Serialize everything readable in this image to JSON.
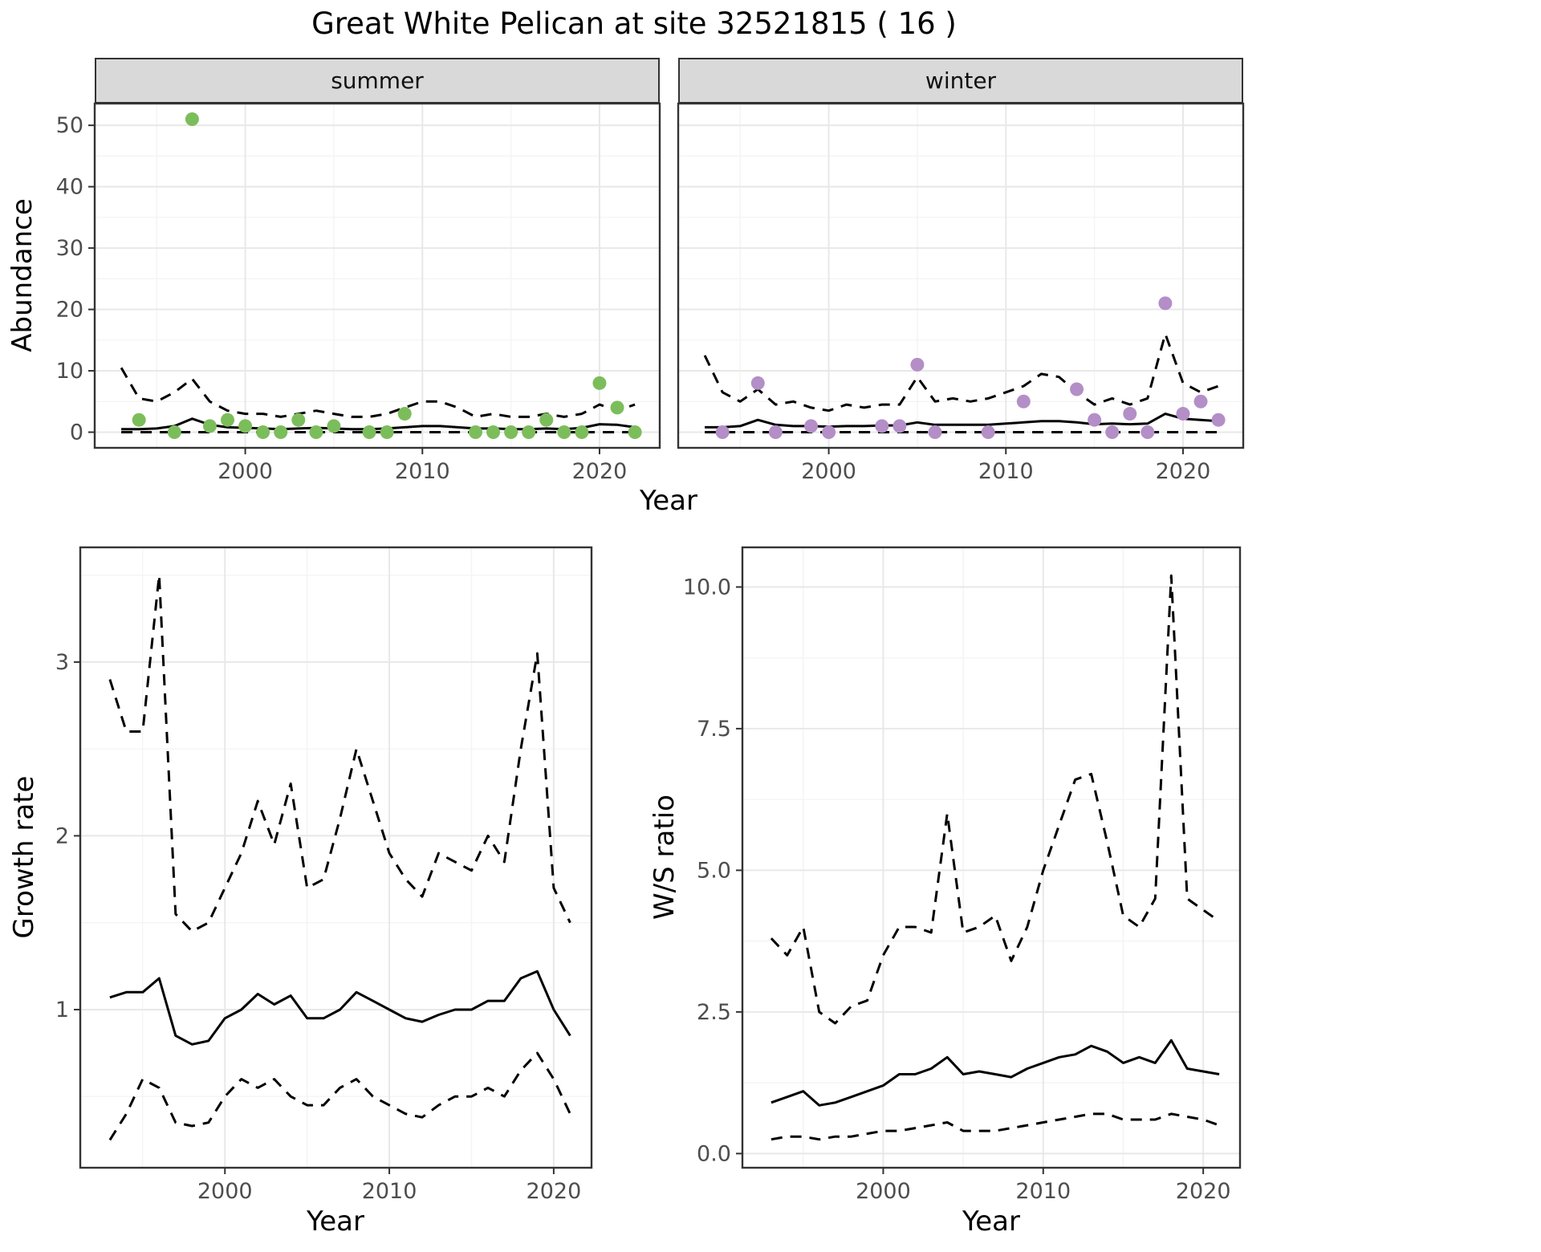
{
  "title": "Great White Pelican at site 32521815 ( 16 )",
  "labels": {
    "year": "Year",
    "abundance": "Abundance",
    "growth_rate": "Growth rate",
    "ws_ratio": "W/S ratio"
  },
  "facets": {
    "summer": "summer",
    "winter": "winter"
  },
  "colors": {
    "summer_point": "#7cbd5b",
    "winter_point": "#b48ec7",
    "line": "#000000",
    "grid_major": "#e8e8e8",
    "grid_minor": "#f4f4f4",
    "strip_fill": "#d9d9d9",
    "panel_border": "#333333",
    "tick_label": "#4d4d4d"
  },
  "chart_data": [
    {
      "id": "abundance-summer",
      "type": "scatter",
      "facet": "summer",
      "xlabel": "Year",
      "ylabel": "Abundance",
      "xlim": [
        1991.5,
        2023.4
      ],
      "ylim": [
        -2.55,
        53.55
      ],
      "xticks": {
        "values": [
          2000,
          2010,
          2020
        ],
        "labels": [
          "2000",
          "2010",
          "2020"
        ]
      },
      "yticks": {
        "values": [
          0,
          10,
          20,
          30,
          40,
          50
        ],
        "labels": [
          "0",
          "10",
          "20",
          "30",
          "40",
          "50"
        ]
      },
      "line_years": [
        1993,
        1994,
        1995,
        1996,
        1997,
        1998,
        1999,
        2000,
        2001,
        2002,
        2003,
        2004,
        2005,
        2006,
        2007,
        2008,
        2009,
        2010,
        2011,
        2012,
        2013,
        2014,
        2015,
        2016,
        2017,
        2018,
        2019,
        2020,
        2021,
        2022
      ],
      "series": [
        {
          "name": "lower",
          "style": "dashed",
          "values": [
            0,
            0,
            0,
            0,
            0,
            0,
            0,
            0,
            0,
            0,
            0,
            0,
            0,
            0,
            0,
            0,
            0,
            0,
            0,
            0,
            0,
            0,
            0,
            0,
            0,
            0,
            0,
            0,
            0,
            0
          ]
        },
        {
          "name": "upper",
          "style": "dashed",
          "values": [
            10.5,
            5.5,
            5.0,
            6.5,
            8.7,
            5.0,
            3.5,
            3.0,
            3.0,
            2.5,
            3.0,
            3.5,
            3.0,
            2.5,
            2.5,
            3.0,
            4.0,
            5.0,
            5.0,
            4.0,
            2.5,
            3.0,
            2.5,
            2.5,
            3.0,
            2.5,
            3.0,
            4.5,
            3.5,
            4.5
          ]
        },
        {
          "name": "median",
          "style": "solid",
          "values": [
            0.5,
            0.5,
            0.6,
            1.0,
            2.2,
            1.2,
            0.8,
            0.7,
            0.6,
            0.5,
            0.6,
            0.7,
            0.6,
            0.5,
            0.5,
            0.6,
            0.8,
            1.0,
            1.0,
            0.8,
            0.6,
            0.6,
            0.5,
            0.5,
            0.6,
            0.5,
            0.7,
            1.3,
            1.2,
            0.8
          ]
        }
      ],
      "points": {
        "color": "#7cbd5b",
        "data": [
          [
            1994,
            2
          ],
          [
            1996,
            0
          ],
          [
            1997,
            51
          ],
          [
            1998,
            1
          ],
          [
            1999,
            2
          ],
          [
            2000,
            1
          ],
          [
            2001,
            0
          ],
          [
            2002,
            0
          ],
          [
            2003,
            2
          ],
          [
            2004,
            0
          ],
          [
            2005,
            1
          ],
          [
            2007,
            0
          ],
          [
            2008,
            0
          ],
          [
            2009,
            3
          ],
          [
            2013,
            0
          ],
          [
            2014,
            0
          ],
          [
            2015,
            0
          ],
          [
            2016,
            0
          ],
          [
            2017,
            2
          ],
          [
            2018,
            0
          ],
          [
            2019,
            0
          ],
          [
            2020,
            8
          ],
          [
            2021,
            4
          ],
          [
            2022,
            0
          ]
        ]
      }
    },
    {
      "id": "abundance-winter",
      "type": "scatter",
      "facet": "winter",
      "xlabel": "Year",
      "ylabel": "Abundance",
      "xlim": [
        1991.5,
        2023.4
      ],
      "ylim": [
        -2.55,
        53.55
      ],
      "xticks": {
        "values": [
          2000,
          2010,
          2020
        ],
        "labels": [
          "2000",
          "2010",
          "2020"
        ]
      },
      "yticks": {
        "values": [
          0,
          10,
          20,
          30,
          40,
          50
        ],
        "labels": [
          "0",
          "10",
          "20",
          "30",
          "40",
          "50"
        ]
      },
      "line_years": [
        1993,
        1994,
        1995,
        1996,
        1997,
        1998,
        1999,
        2000,
        2001,
        2002,
        2003,
        2004,
        2005,
        2006,
        2007,
        2008,
        2009,
        2010,
        2011,
        2012,
        2013,
        2014,
        2015,
        2016,
        2017,
        2018,
        2019,
        2020,
        2021,
        2022
      ],
      "series": [
        {
          "name": "lower",
          "style": "dashed",
          "values": [
            0,
            0,
            0,
            0,
            0,
            0,
            0,
            0,
            0,
            0,
            0,
            0,
            0,
            0,
            0,
            0,
            0,
            0,
            0,
            0,
            0,
            0,
            0,
            0,
            0,
            0,
            0,
            0,
            0,
            0
          ]
        },
        {
          "name": "upper",
          "style": "dashed",
          "values": [
            12.5,
            6.5,
            5.0,
            7.0,
            4.5,
            5.0,
            4.0,
            3.5,
            4.5,
            4.0,
            4.5,
            4.5,
            9.0,
            5.0,
            5.5,
            5.0,
            5.5,
            6.5,
            7.5,
            9.5,
            9.0,
            6.5,
            4.5,
            5.5,
            4.5,
            5.5,
            16.0,
            8.0,
            6.5,
            7.5
          ]
        },
        {
          "name": "median",
          "style": "solid",
          "values": [
            0.8,
            0.8,
            1.0,
            2.0,
            1.2,
            1.0,
            1.0,
            0.9,
            1.0,
            1.0,
            1.1,
            1.1,
            1.6,
            1.2,
            1.2,
            1.2,
            1.2,
            1.4,
            1.6,
            1.8,
            1.8,
            1.6,
            1.3,
            1.4,
            1.3,
            1.4,
            3.0,
            2.2,
            2.0,
            1.8
          ]
        }
      ],
      "points": {
        "color": "#b48ec7",
        "data": [
          [
            1994,
            0
          ],
          [
            1996,
            8
          ],
          [
            1997,
            0
          ],
          [
            1999,
            1
          ],
          [
            2000,
            0
          ],
          [
            2003,
            1
          ],
          [
            2004,
            1
          ],
          [
            2005,
            11
          ],
          [
            2006,
            0
          ],
          [
            2009,
            0
          ],
          [
            2011,
            5
          ],
          [
            2014,
            7
          ],
          [
            2015,
            2
          ],
          [
            2016,
            0
          ],
          [
            2017,
            3
          ],
          [
            2018,
            0
          ],
          [
            2019,
            21
          ],
          [
            2020,
            3
          ],
          [
            2021,
            5
          ],
          [
            2022,
            2
          ]
        ]
      }
    },
    {
      "id": "growth-rate",
      "type": "line",
      "xlabel": "Year",
      "ylabel": "Growth rate",
      "xlim": [
        1991.2,
        2022.3
      ],
      "ylim": [
        0.09,
        3.66
      ],
      "xticks": {
        "values": [
          2000,
          2010,
          2020
        ],
        "labels": [
          "2000",
          "2010",
          "2020"
        ]
      },
      "yticks": {
        "values": [
          1,
          2,
          3
        ],
        "labels": [
          "1",
          "2",
          "3"
        ]
      },
      "line_years": [
        1993,
        1994,
        1995,
        1996,
        1997,
        1998,
        1999,
        2000,
        2001,
        2002,
        2003,
        2004,
        2005,
        2006,
        2007,
        2008,
        2009,
        2010,
        2011,
        2012,
        2013,
        2014,
        2015,
        2016,
        2017,
        2018,
        2019,
        2020,
        2021
      ],
      "series": [
        {
          "name": "lower",
          "style": "dashed",
          "values": [
            0.25,
            0.4,
            0.6,
            0.55,
            0.35,
            0.33,
            0.35,
            0.5,
            0.6,
            0.55,
            0.6,
            0.5,
            0.45,
            0.45,
            0.55,
            0.6,
            0.5,
            0.45,
            0.4,
            0.38,
            0.45,
            0.5,
            0.5,
            0.55,
            0.5,
            0.65,
            0.75,
            0.6,
            0.4
          ]
        },
        {
          "name": "upper",
          "style": "dashed",
          "values": [
            2.9,
            2.6,
            2.6,
            3.5,
            1.55,
            1.45,
            1.5,
            1.7,
            1.9,
            2.2,
            1.95,
            2.3,
            1.7,
            1.75,
            2.1,
            2.5,
            2.2,
            1.9,
            1.75,
            1.65,
            1.9,
            1.85,
            1.8,
            2.0,
            1.85,
            2.5,
            3.05,
            1.7,
            1.5
          ]
        },
        {
          "name": "median",
          "style": "solid",
          "values": [
            1.07,
            1.1,
            1.1,
            1.18,
            0.85,
            0.8,
            0.82,
            0.95,
            1.0,
            1.09,
            1.03,
            1.08,
            0.95,
            0.95,
            1.0,
            1.1,
            1.05,
            1.0,
            0.95,
            0.93,
            0.97,
            1.0,
            1.0,
            1.05,
            1.05,
            1.18,
            1.22,
            1.0,
            0.85
          ]
        }
      ]
    },
    {
      "id": "ws-ratio",
      "type": "line",
      "xlabel": "Year",
      "ylabel": "W/S ratio",
      "xlim": [
        1991.2,
        2022.3
      ],
      "ylim": [
        -0.25,
        10.7
      ],
      "xticks": {
        "values": [
          2000,
          2010,
          2020
        ],
        "labels": [
          "2000",
          "2010",
          "2020"
        ]
      },
      "yticks": {
        "values": [
          0,
          2.5,
          5,
          7.5,
          10
        ],
        "labels": [
          "0.0",
          "2.5",
          "5.0",
          "7.5",
          "10.0"
        ]
      },
      "line_years": [
        1993,
        1994,
        1995,
        1996,
        1997,
        1998,
        1999,
        2000,
        2001,
        2002,
        2003,
        2004,
        2005,
        2006,
        2007,
        2008,
        2009,
        2010,
        2011,
        2012,
        2013,
        2014,
        2015,
        2016,
        2017,
        2018,
        2019,
        2020,
        2021
      ],
      "series": [
        {
          "name": "lower",
          "style": "dashed",
          "values": [
            0.25,
            0.3,
            0.3,
            0.25,
            0.3,
            0.3,
            0.35,
            0.4,
            0.4,
            0.45,
            0.5,
            0.55,
            0.4,
            0.4,
            0.4,
            0.45,
            0.5,
            0.55,
            0.6,
            0.65,
            0.7,
            0.7,
            0.6,
            0.6,
            0.6,
            0.7,
            0.65,
            0.6,
            0.5
          ]
        },
        {
          "name": "upper",
          "style": "dashed",
          "values": [
            3.8,
            3.5,
            4.0,
            2.5,
            2.3,
            2.6,
            2.7,
            3.5,
            4.0,
            4.0,
            3.9,
            6.0,
            3.9,
            4.0,
            4.2,
            3.4,
            4.0,
            5.0,
            5.8,
            6.6,
            6.7,
            5.5,
            4.2,
            4.0,
            4.5,
            10.2,
            4.5,
            4.3,
            4.1
          ]
        },
        {
          "name": "median",
          "style": "solid",
          "values": [
            0.9,
            1.0,
            1.1,
            0.85,
            0.9,
            1.0,
            1.1,
            1.2,
            1.4,
            1.4,
            1.5,
            1.7,
            1.4,
            1.45,
            1.4,
            1.35,
            1.5,
            1.6,
            1.7,
            1.75,
            1.9,
            1.8,
            1.6,
            1.7,
            1.6,
            2.0,
            1.5,
            1.45,
            1.4
          ]
        }
      ]
    }
  ]
}
